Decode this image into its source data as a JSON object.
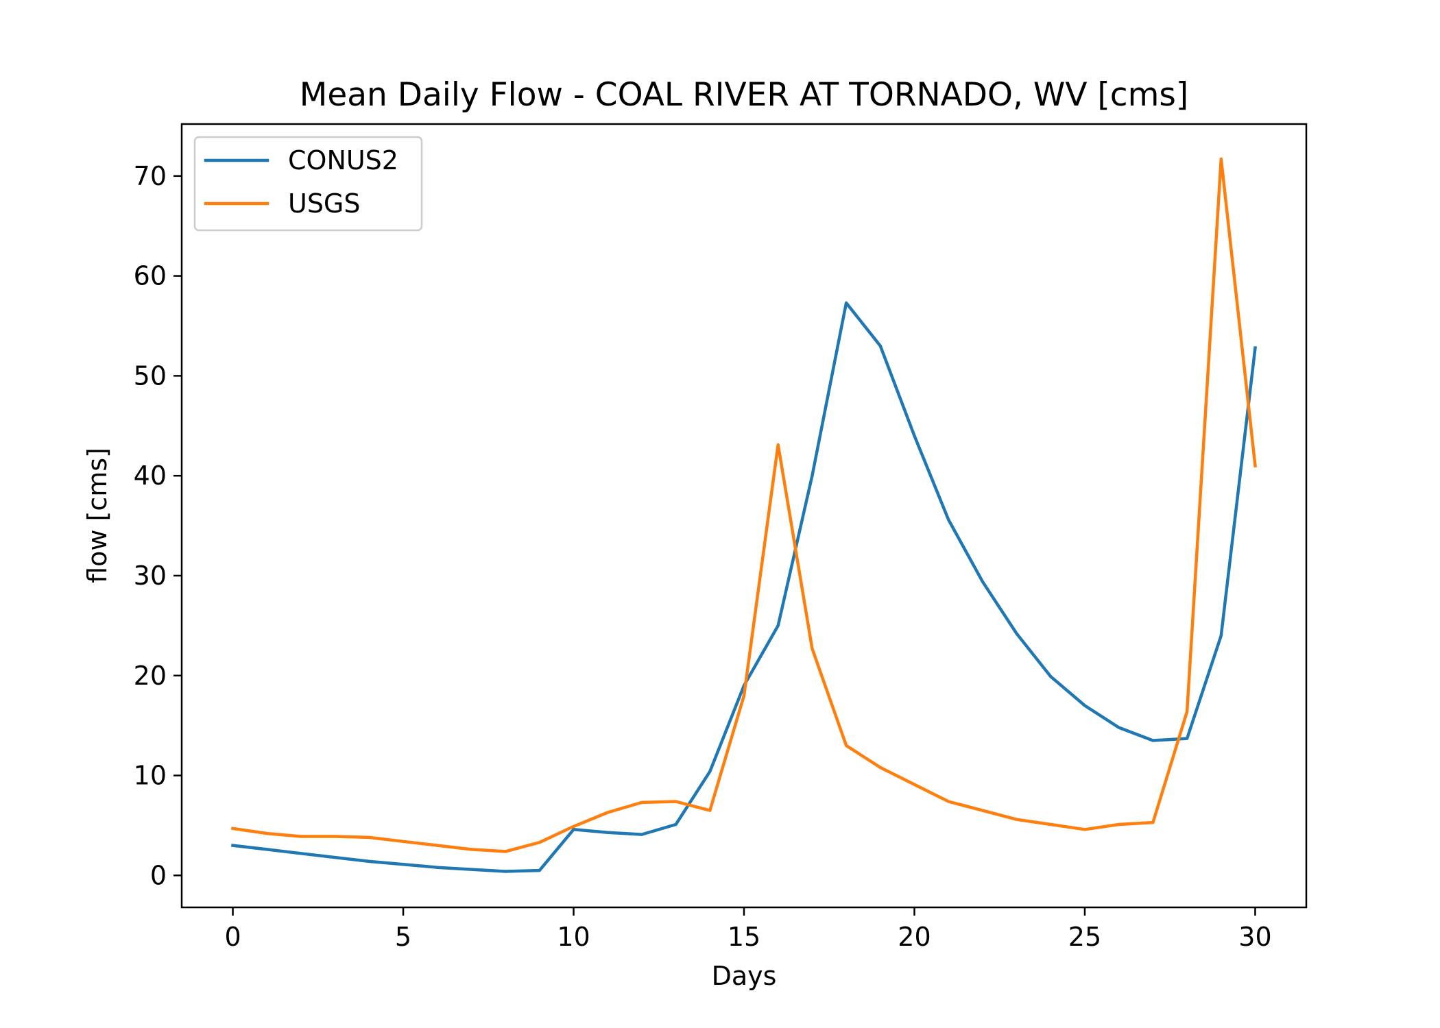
{
  "chart_data": {
    "type": "line",
    "title": "Mean Daily Flow - COAL RIVER AT TORNADO, WV [cms]",
    "xlabel": "Days",
    "ylabel": "flow [cms]",
    "xlim": [
      -1.5,
      31.5
    ],
    "ylim": [
      -3.2,
      75.2
    ],
    "xticks": [
      0,
      5,
      10,
      15,
      20,
      25,
      30
    ],
    "xtick_labels": [
      "0",
      "5",
      "10",
      "15",
      "20",
      "25",
      "30"
    ],
    "yticks": [
      0,
      10,
      20,
      30,
      40,
      50,
      60,
      70
    ],
    "ytick_labels": [
      "0",
      "10",
      "20",
      "30",
      "40",
      "50",
      "60",
      "70"
    ],
    "grid": false,
    "legend": "upper left",
    "x": [
      0,
      1,
      2,
      3,
      4,
      5,
      6,
      7,
      8,
      9,
      10,
      11,
      12,
      13,
      14,
      15,
      16,
      17,
      18,
      19,
      20,
      21,
      22,
      23,
      24,
      25,
      26,
      27,
      28,
      29,
      30
    ],
    "series": [
      {
        "name": "CONUS2",
        "color": "#1f77b4",
        "values": [
          3.0,
          2.6,
          2.2,
          1.8,
          1.4,
          1.1,
          0.8,
          0.6,
          0.4,
          0.5,
          4.6,
          4.3,
          4.1,
          5.1,
          10.4,
          19.0,
          25.0,
          40.0,
          57.3,
          53.0,
          44.0,
          35.6,
          29.4,
          24.2,
          19.9,
          17.0,
          14.8,
          13.5,
          13.7,
          24.0,
          52.8
        ]
      },
      {
        "name": "USGS",
        "color": "#ff7f0e",
        "values": [
          4.7,
          4.2,
          3.9,
          3.9,
          3.8,
          3.4,
          3.0,
          2.6,
          2.4,
          3.3,
          4.9,
          6.3,
          7.3,
          7.4,
          6.5,
          18.0,
          43.1,
          22.7,
          13.0,
          10.8,
          9.1,
          7.4,
          6.5,
          5.6,
          5.1,
          4.6,
          5.1,
          5.3,
          16.4,
          71.7,
          41.0
        ]
      }
    ]
  }
}
